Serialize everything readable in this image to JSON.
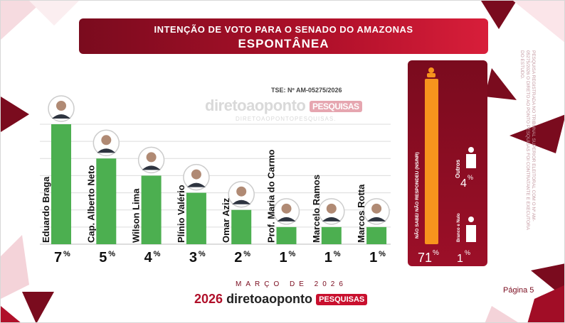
{
  "header": {
    "title": "INTENÇÃO DE VOTO PARA O SENADO DO AMAZONAS",
    "subtitle": "ESPONTÂNEA"
  },
  "tse": "TSE: Nº AM-05275/2026",
  "watermark": {
    "brand": "diretoaoponto",
    "tag": "PESQUISAS",
    "site": "DIRETOAOPONTOPESQUISAS."
  },
  "chart_data": {
    "type": "bar",
    "title": "INTENÇÃO DE VOTO PARA O SENADO DO AMAZONAS",
    "subtitle": "ESPONTÂNEA",
    "unit": "%",
    "ylim": [
      0,
      7
    ],
    "grid": true,
    "categories": [
      "Eduardo Braga",
      "Cap. Alberto Neto",
      "Wilson Lima",
      "Plínio Valério",
      "Omar Aziz",
      "Prof. Maria do Carmo",
      "Marcelo Ramos",
      "Marcos Rotta"
    ],
    "values": [
      7,
      5,
      4,
      3,
      2,
      1,
      1,
      1
    ],
    "value_labels": [
      "7",
      "5",
      "4",
      "3",
      "2",
      "1",
      "1",
      "1"
    ],
    "bar_color": "#4caf50",
    "extra": [
      {
        "label": "NÃO SABE/ NÃO RESPONDEU (NS/NR)",
        "value": 71,
        "value_label": "71",
        "color": "#f7941d"
      },
      {
        "label": "Outros",
        "value": 4,
        "value_label": "4"
      },
      {
        "label": "Branco e Nulo",
        "value": 1,
        "value_label": "1"
      }
    ]
  },
  "footer": {
    "date": "MARÇO DE 2026",
    "year": "2026",
    "brand": "diretoaoponto",
    "tag": "PESQUISAS"
  },
  "page_label": "Página 5",
  "side_note": "PESQUISA REGISTRADA NO TRIBUNAL SUPERIOR ELEITORAL COM O Nº AM-05275/2026 O DIRETO AO PONTO PESQUISAS FOI CONTRATANTE E EXECUTORA DO ESTUDO.",
  "colors": {
    "brand_dark": "#7a0b1e",
    "brand": "#b0102a",
    "bar": "#4caf50",
    "nsnr": "#f7941d"
  }
}
